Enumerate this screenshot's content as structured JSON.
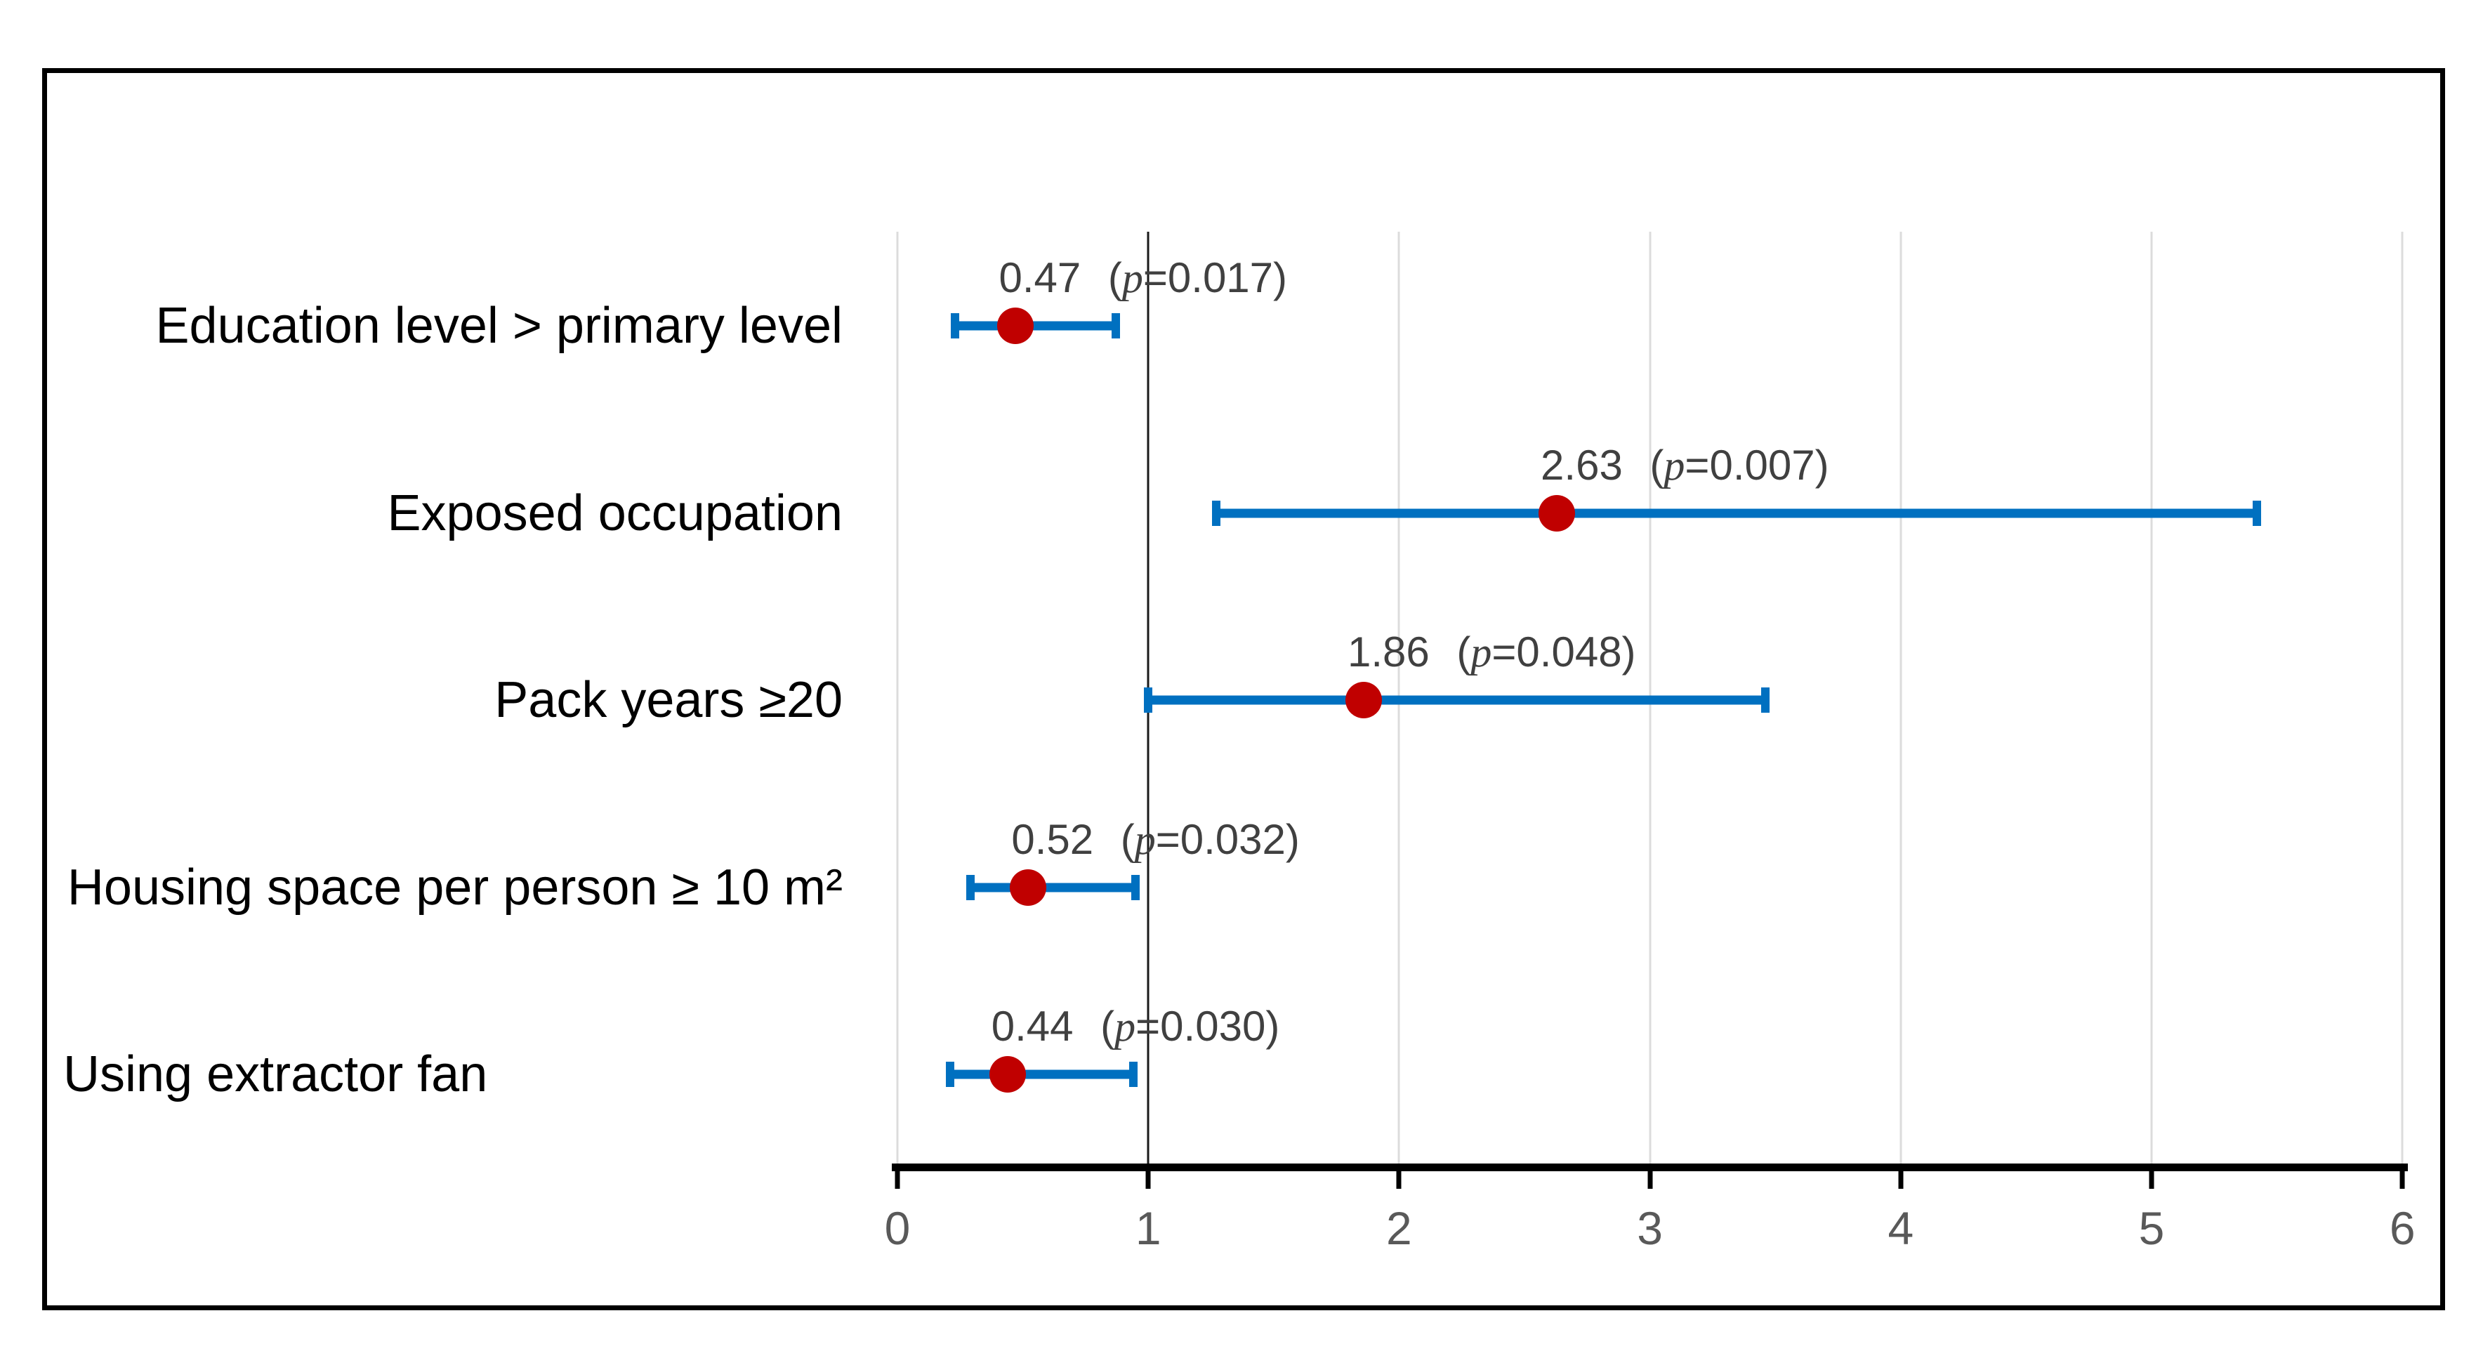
{
  "figure": {
    "description": "Forest plot of adjusted odds ratios with 95% confidence intervals and p-values",
    "border_color": "#000000",
    "background": "#ffffff"
  },
  "chart_data": {
    "type": "scatter",
    "subtype": "forest-plot",
    "title": "",
    "xlabel": "",
    "ylabel": "",
    "xlim": [
      0,
      6
    ],
    "x_ticks": [
      0,
      1,
      2,
      3,
      4,
      5,
      6
    ],
    "x_tick_labels": [
      "0",
      "1",
      "2",
      "3",
      "4",
      "5",
      "6"
    ],
    "grid": "vertical-light",
    "reference_line_x": 1,
    "rows": [
      {
        "label": "Education level > primary level",
        "align": "right",
        "or": 0.47,
        "or_label": "0.47",
        "ci_low": 0.23,
        "ci_high": 0.87,
        "p": "0.017"
      },
      {
        "label": "Exposed occupation",
        "align": "right",
        "or": 2.63,
        "or_label": "2.63",
        "ci_low": 1.27,
        "ci_high": 5.42,
        "p": "0.007"
      },
      {
        "label": "Pack years ≥20",
        "align": "right",
        "or": 1.86,
        "or_label": "1.86",
        "ci_low": 1.0,
        "ci_high": 3.46,
        "p": "0.048"
      },
      {
        "label": "Housing space per person ≥ 10 m²",
        "align": "right",
        "or": 0.52,
        "or_label": "0.52",
        "ci_low": 0.29,
        "ci_high": 0.95,
        "p": "0.032"
      },
      {
        "label": "Using extractor fan",
        "align": "left",
        "or": 0.44,
        "or_label": "0.44",
        "ci_low": 0.21,
        "ci_high": 0.94,
        "p": "0.030"
      }
    ],
    "colors": {
      "marker": "#c00000",
      "error_bar": "#0070c0",
      "reference_line": "#1a1a1a",
      "gridline": "#dcdcdc",
      "axis": "#000000",
      "tick_label": "#595959",
      "value_label": "#404040",
      "row_label": "#000000"
    },
    "legend": null
  }
}
